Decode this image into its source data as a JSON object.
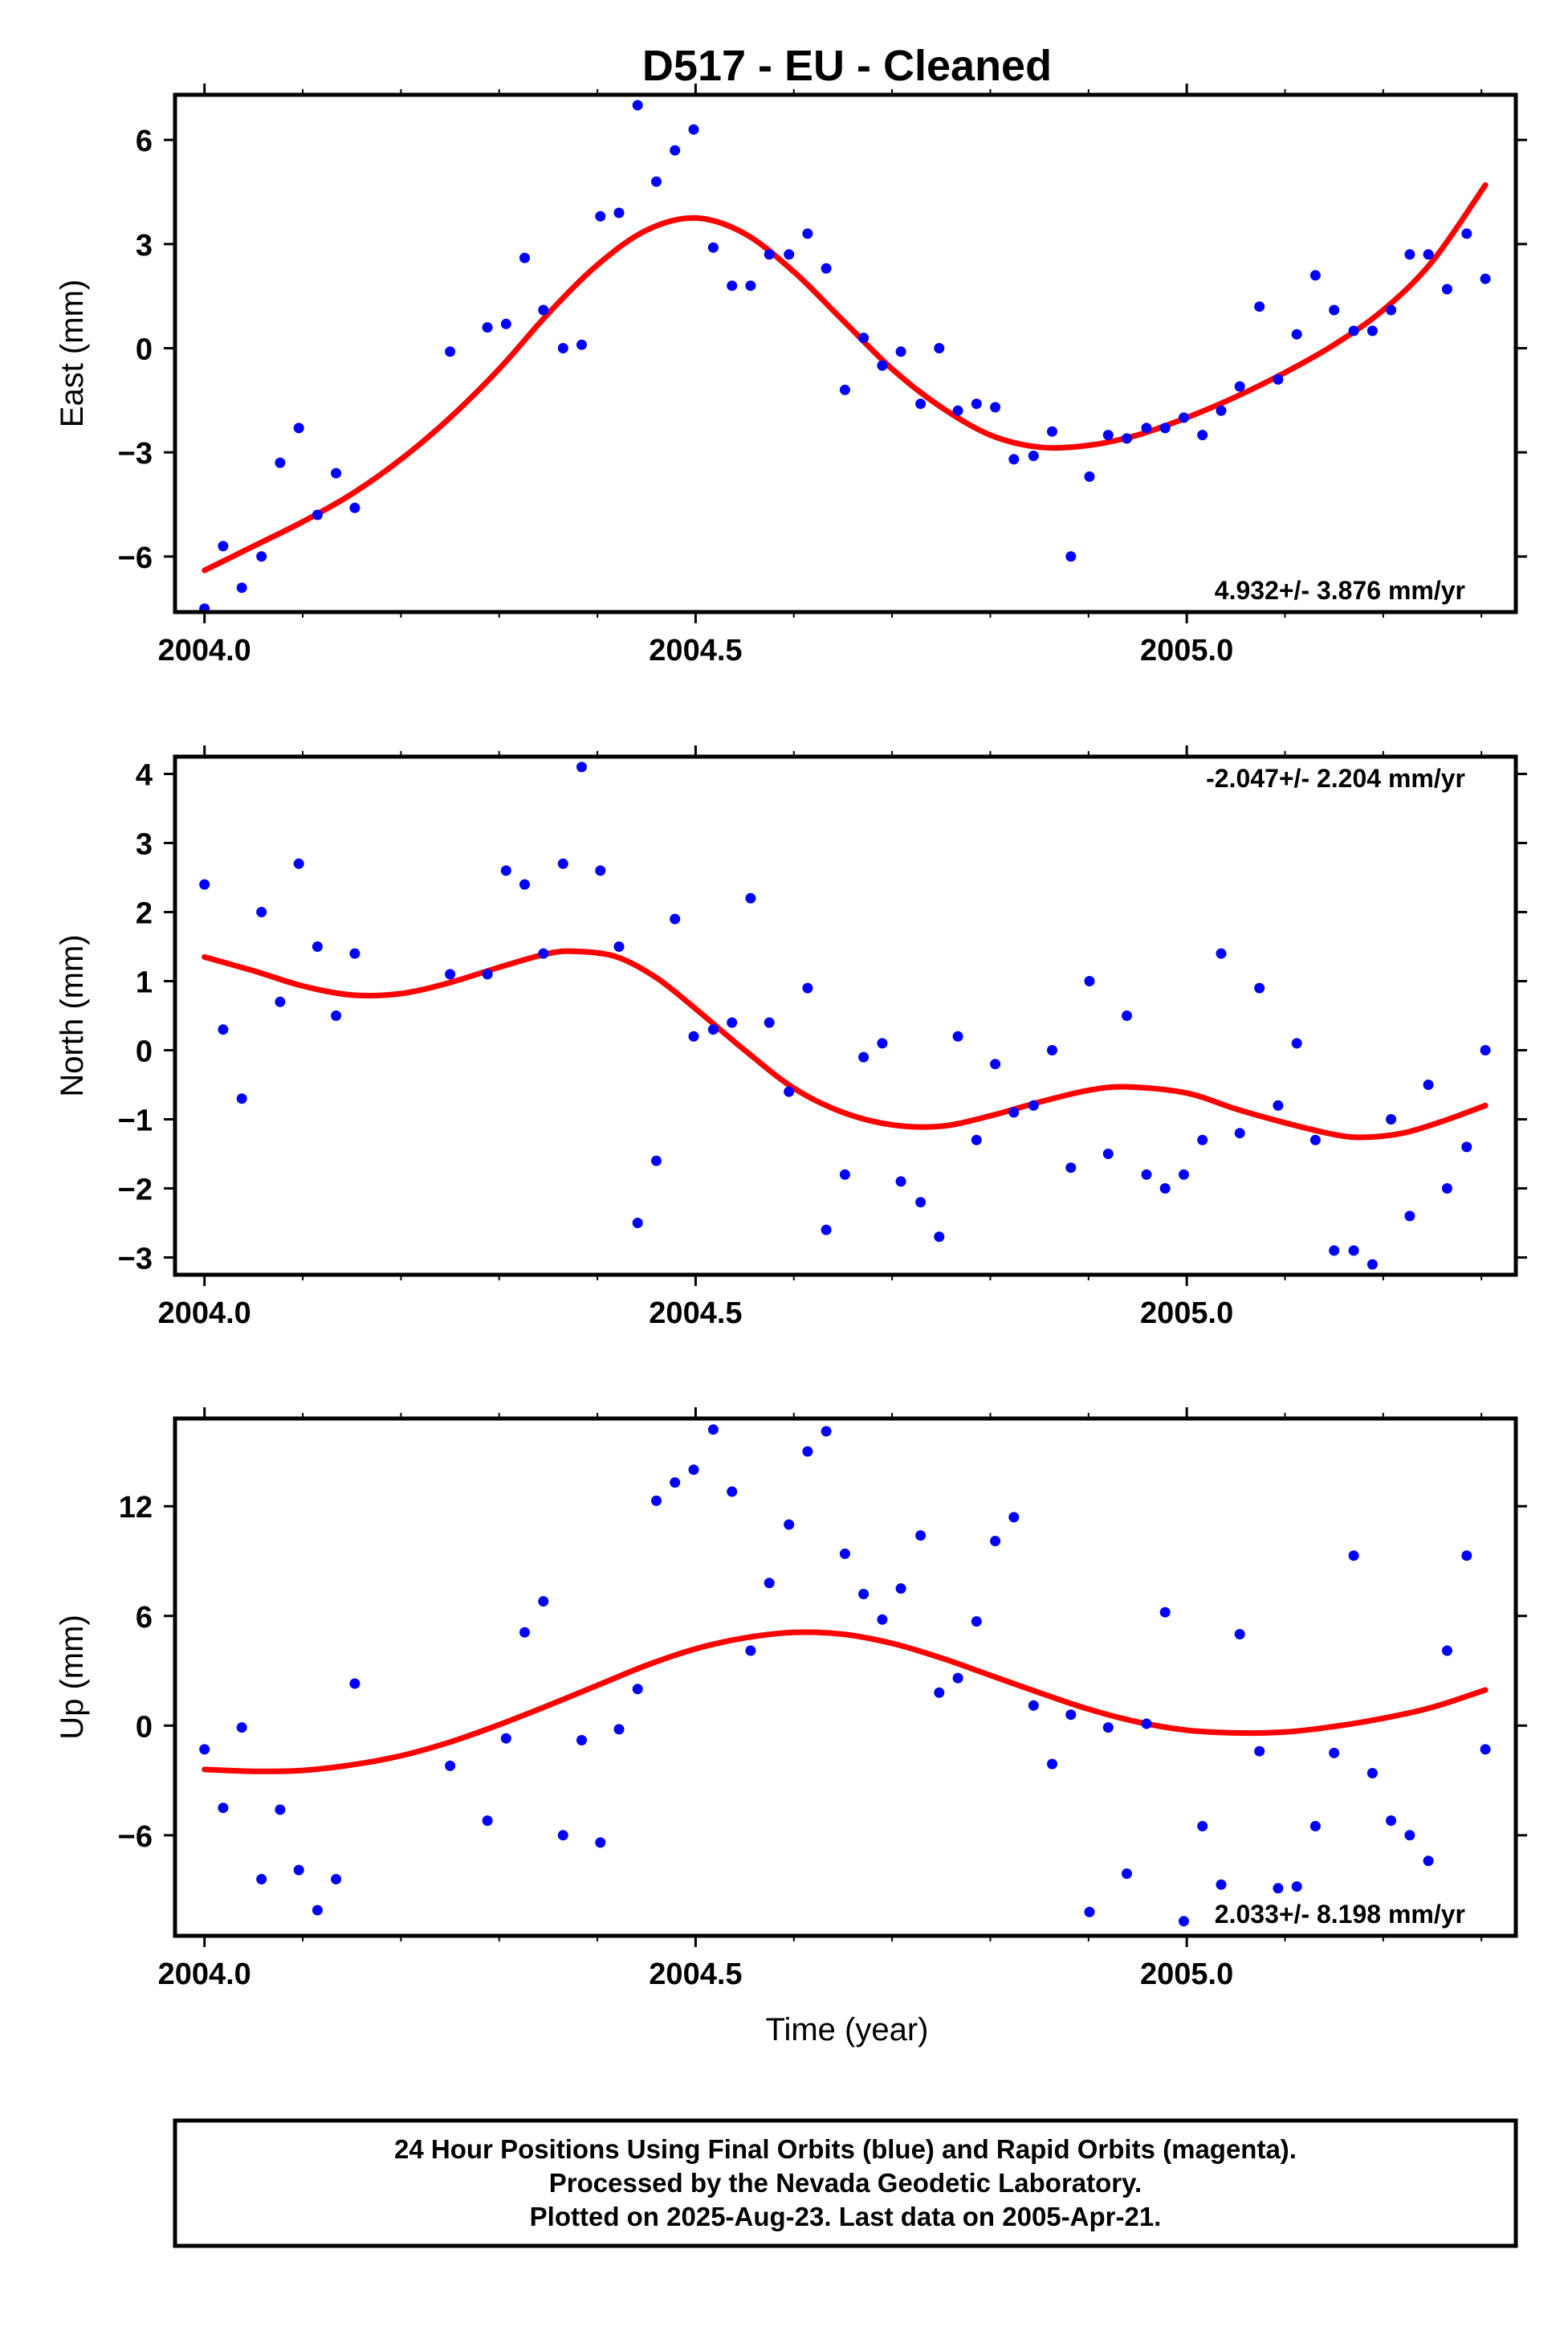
{
  "title": "D517  - EU - Cleaned",
  "xlabel": "Time (year)",
  "colors": {
    "points": "#0000ff",
    "fit": "#ff0000",
    "axes": "#000000"
  },
  "footer": {
    "line1": "24 Hour Positions Using Final Orbits (blue) and Rapid Orbits (magenta).",
    "line2": "Processed by the Nevada Geodetic Laboratory.",
    "line3": "Plotted on 2025-Aug-23. Last data on 2005-Apr-21."
  },
  "chart_data": [
    {
      "type": "scatter",
      "ylabel": "East (mm)",
      "rate_label": "4.932+/- 3.876 mm/yr",
      "xlim": [
        2003.97,
        2005.335
      ],
      "ylim": [
        -7.6,
        7.3
      ],
      "xticks": [
        2004.0,
        2004.5,
        2005.0
      ],
      "xtick_labels": [
        "2004.0",
        "2004.5",
        "2005.0"
      ],
      "yticks": [
        -6,
        -3,
        0,
        3,
        6
      ],
      "ytick_labels": [
        "−6",
        "−3",
        "0",
        "3",
        "6"
      ],
      "points": [
        [
          2004.0,
          -7.5
        ],
        [
          2004.019,
          -5.7
        ],
        [
          2004.038,
          -6.9
        ],
        [
          2004.058,
          -6.0
        ],
        [
          2004.077,
          -3.3
        ],
        [
          2004.096,
          -2.3
        ],
        [
          2004.115,
          -4.8
        ],
        [
          2004.134,
          -3.6
        ],
        [
          2004.153,
          -4.6
        ],
        [
          2004.25,
          -0.1
        ],
        [
          2004.288,
          0.6
        ],
        [
          2004.307,
          0.7
        ],
        [
          2004.326,
          2.6
        ],
        [
          2004.345,
          1.1
        ],
        [
          2004.365,
          0.0
        ],
        [
          2004.384,
          0.1
        ],
        [
          2004.403,
          3.8
        ],
        [
          2004.422,
          3.9
        ],
        [
          2004.441,
          7.0
        ],
        [
          2004.46,
          4.8
        ],
        [
          2004.479,
          5.7
        ],
        [
          2004.498,
          6.3
        ],
        [
          2004.518,
          2.9
        ],
        [
          2004.537,
          1.8
        ],
        [
          2004.556,
          1.8
        ],
        [
          2004.575,
          2.7
        ],
        [
          2004.595,
          2.7
        ],
        [
          2004.614,
          3.3
        ],
        [
          2004.633,
          2.3
        ],
        [
          2004.652,
          -1.2
        ],
        [
          2004.671,
          0.3
        ],
        [
          2004.69,
          -0.5
        ],
        [
          2004.709,
          -0.1
        ],
        [
          2004.729,
          -1.6
        ],
        [
          2004.748,
          0.0
        ],
        [
          2004.767,
          -1.8
        ],
        [
          2004.786,
          -1.6
        ],
        [
          2004.805,
          -1.7
        ],
        [
          2004.824,
          -3.2
        ],
        [
          2004.844,
          -3.1
        ],
        [
          2004.863,
          -2.4
        ],
        [
          2004.882,
          -6.0
        ],
        [
          2004.901,
          -3.7
        ],
        [
          2004.92,
          -2.5
        ],
        [
          2004.939,
          -2.6
        ],
        [
          2004.959,
          -2.3
        ],
        [
          2004.978,
          -2.3
        ],
        [
          2004.997,
          -2.0
        ],
        [
          2005.016,
          -2.5
        ],
        [
          2005.035,
          -1.8
        ],
        [
          2005.054,
          -1.1
        ],
        [
          2005.074,
          1.2
        ],
        [
          2005.093,
          -0.9
        ],
        [
          2005.112,
          0.4
        ],
        [
          2005.131,
          2.1
        ],
        [
          2005.15,
          1.1
        ],
        [
          2005.17,
          0.5
        ],
        [
          2005.189,
          0.5
        ],
        [
          2005.208,
          1.1
        ],
        [
          2005.227,
          2.7
        ],
        [
          2005.246,
          2.7
        ],
        [
          2005.265,
          1.7
        ],
        [
          2005.285,
          3.3
        ],
        [
          2005.304,
          2.0
        ]
      ],
      "fit": [
        [
          2004.0,
          -6.4
        ],
        [
          2004.05,
          -5.7
        ],
        [
          2004.1,
          -5.0
        ],
        [
          2004.15,
          -4.2
        ],
        [
          2004.2,
          -3.2
        ],
        [
          2004.25,
          -2.0
        ],
        [
          2004.3,
          -0.6
        ],
        [
          2004.35,
          1.0
        ],
        [
          2004.4,
          2.4
        ],
        [
          2004.45,
          3.4
        ],
        [
          2004.5,
          3.75
        ],
        [
          2004.55,
          3.3
        ],
        [
          2004.6,
          2.2
        ],
        [
          2004.65,
          0.8
        ],
        [
          2004.7,
          -0.6
        ],
        [
          2004.75,
          -1.7
        ],
        [
          2004.8,
          -2.5
        ],
        [
          2004.85,
          -2.85
        ],
        [
          2004.9,
          -2.8
        ],
        [
          2004.95,
          -2.5
        ],
        [
          2005.0,
          -2.0
        ],
        [
          2005.05,
          -1.4
        ],
        [
          2005.1,
          -0.7
        ],
        [
          2005.15,
          0.1
        ],
        [
          2005.2,
          1.1
        ],
        [
          2005.25,
          2.5
        ],
        [
          2005.304,
          4.7
        ]
      ]
    },
    {
      "type": "scatter",
      "ylabel": "North (mm)",
      "rate_label": "-2.047+/- 2.204 mm/yr",
      "xlim": [
        2003.97,
        2005.335
      ],
      "ylim": [
        -3.25,
        4.25
      ],
      "xticks": [
        2004.0,
        2004.5,
        2005.0
      ],
      "xtick_labels": [
        "2004.0",
        "2004.5",
        "2005.0"
      ],
      "yticks": [
        -3,
        -2,
        -1,
        0,
        1,
        2,
        3,
        4
      ],
      "ytick_labels": [
        "−3",
        "−2",
        "−1",
        "0",
        "1",
        "2",
        "3",
        "4"
      ],
      "points": [
        [
          2004.0,
          2.4
        ],
        [
          2004.019,
          0.3
        ],
        [
          2004.038,
          -0.7
        ],
        [
          2004.058,
          2.0
        ],
        [
          2004.077,
          0.7
        ],
        [
          2004.096,
          2.7
        ],
        [
          2004.115,
          1.5
        ],
        [
          2004.134,
          0.5
        ],
        [
          2004.153,
          1.4
        ],
        [
          2004.25,
          1.1
        ],
        [
          2004.288,
          1.1
        ],
        [
          2004.307,
          2.6
        ],
        [
          2004.326,
          2.4
        ],
        [
          2004.345,
          1.4
        ],
        [
          2004.365,
          2.7
        ],
        [
          2004.384,
          4.1
        ],
        [
          2004.403,
          2.6
        ],
        [
          2004.422,
          1.5
        ],
        [
          2004.441,
          -2.5
        ],
        [
          2004.46,
          -1.6
        ],
        [
          2004.479,
          1.9
        ],
        [
          2004.498,
          0.2
        ],
        [
          2004.518,
          0.3
        ],
        [
          2004.537,
          0.4
        ],
        [
          2004.556,
          2.2
        ],
        [
          2004.575,
          0.4
        ],
        [
          2004.595,
          -0.6
        ],
        [
          2004.614,
          0.9
        ],
        [
          2004.633,
          -2.6
        ],
        [
          2004.652,
          -1.8
        ],
        [
          2004.671,
          -0.1
        ],
        [
          2004.69,
          0.1
        ],
        [
          2004.709,
          -1.9
        ],
        [
          2004.729,
          -2.2
        ],
        [
          2004.748,
          -2.7
        ],
        [
          2004.767,
          0.2
        ],
        [
          2004.786,
          -1.3
        ],
        [
          2004.805,
          -0.2
        ],
        [
          2004.824,
          -0.9
        ],
        [
          2004.844,
          -0.8
        ],
        [
          2004.863,
          0.0
        ],
        [
          2004.882,
          -1.7
        ],
        [
          2004.901,
          1.0
        ],
        [
          2004.92,
          -1.5
        ],
        [
          2004.939,
          0.5
        ],
        [
          2004.959,
          -1.8
        ],
        [
          2004.978,
          -2.0
        ],
        [
          2004.997,
          -1.8
        ],
        [
          2005.016,
          -1.3
        ],
        [
          2005.035,
          1.4
        ],
        [
          2005.054,
          -1.2
        ],
        [
          2005.074,
          0.9
        ],
        [
          2005.093,
          -0.8
        ],
        [
          2005.112,
          0.1
        ],
        [
          2005.131,
          -1.3
        ],
        [
          2005.15,
          -2.9
        ],
        [
          2005.17,
          -2.9
        ],
        [
          2005.189,
          -3.1
        ],
        [
          2005.208,
          -1.0
        ],
        [
          2005.227,
          -2.4
        ],
        [
          2005.246,
          -0.5
        ],
        [
          2005.265,
          -2.0
        ],
        [
          2005.285,
          -1.4
        ],
        [
          2005.304,
          0.0
        ]
      ],
      "fit": [
        [
          2004.0,
          1.35
        ],
        [
          2004.05,
          1.15
        ],
        [
          2004.1,
          0.93
        ],
        [
          2004.15,
          0.8
        ],
        [
          2004.2,
          0.82
        ],
        [
          2004.25,
          0.98
        ],
        [
          2004.3,
          1.2
        ],
        [
          2004.35,
          1.4
        ],
        [
          2004.38,
          1.43
        ],
        [
          2004.42,
          1.35
        ],
        [
          2004.46,
          1.05
        ],
        [
          2004.5,
          0.6
        ],
        [
          2004.55,
          0.0
        ],
        [
          2004.6,
          -0.55
        ],
        [
          2004.65,
          -0.9
        ],
        [
          2004.7,
          -1.08
        ],
        [
          2004.75,
          -1.1
        ],
        [
          2004.8,
          -0.95
        ],
        [
          2004.85,
          -0.75
        ],
        [
          2004.9,
          -0.58
        ],
        [
          2004.94,
          -0.53
        ],
        [
          2005.0,
          -0.62
        ],
        [
          2005.05,
          -0.85
        ],
        [
          2005.1,
          -1.05
        ],
        [
          2005.15,
          -1.22
        ],
        [
          2005.18,
          -1.26
        ],
        [
          2005.22,
          -1.2
        ],
        [
          2005.26,
          -1.03
        ],
        [
          2005.304,
          -0.8
        ]
      ]
    },
    {
      "type": "scatter",
      "ylabel": "Up (mm)",
      "rate_label": "2.033+/- 8.198 mm/yr",
      "xlim": [
        2003.97,
        2005.335
      ],
      "ylim": [
        -11.5,
        16.8
      ],
      "xticks": [
        2004.0,
        2004.5,
        2005.0
      ],
      "xtick_labels": [
        "2004.0",
        "2004.5",
        "2005.0"
      ],
      "yticks": [
        -6,
        0,
        6,
        12
      ],
      "ytick_labels": [
        "−6",
        "0",
        "6",
        "12"
      ],
      "points": [
        [
          2004.0,
          -1.3
        ],
        [
          2004.019,
          -4.5
        ],
        [
          2004.038,
          -0.1
        ],
        [
          2004.058,
          -8.4
        ],
        [
          2004.077,
          -4.6
        ],
        [
          2004.096,
          -7.9
        ],
        [
          2004.115,
          -10.1
        ],
        [
          2004.134,
          -8.4
        ],
        [
          2004.153,
          2.3
        ],
        [
          2004.25,
          -2.2
        ],
        [
          2004.288,
          -5.2
        ],
        [
          2004.307,
          -0.7
        ],
        [
          2004.326,
          5.1
        ],
        [
          2004.345,
          6.8
        ],
        [
          2004.365,
          -6.0
        ],
        [
          2004.384,
          -0.8
        ],
        [
          2004.403,
          -6.4
        ],
        [
          2004.422,
          -0.2
        ],
        [
          2004.441,
          2.0
        ],
        [
          2004.46,
          12.3
        ],
        [
          2004.479,
          13.3
        ],
        [
          2004.498,
          14.0
        ],
        [
          2004.518,
          16.2
        ],
        [
          2004.537,
          12.8
        ],
        [
          2004.556,
          4.1
        ],
        [
          2004.575,
          7.8
        ],
        [
          2004.595,
          11.0
        ],
        [
          2004.614,
          15.0
        ],
        [
          2004.633,
          16.1
        ],
        [
          2004.652,
          9.4
        ],
        [
          2004.671,
          7.2
        ],
        [
          2004.69,
          5.8
        ],
        [
          2004.709,
          7.5
        ],
        [
          2004.729,
          10.4
        ],
        [
          2004.748,
          1.8
        ],
        [
          2004.767,
          2.6
        ],
        [
          2004.786,
          5.7
        ],
        [
          2004.805,
          10.1
        ],
        [
          2004.824,
          11.4
        ],
        [
          2004.844,
          1.1
        ],
        [
          2004.863,
          -2.1
        ],
        [
          2004.882,
          0.6
        ],
        [
          2004.901,
          -10.2
        ],
        [
          2004.92,
          -0.1
        ],
        [
          2004.939,
          -8.1
        ],
        [
          2004.959,
          0.1
        ],
        [
          2004.978,
          6.2
        ],
        [
          2004.997,
          -10.7
        ],
        [
          2005.016,
          -5.5
        ],
        [
          2005.035,
          -8.7
        ],
        [
          2005.054,
          5.0
        ],
        [
          2005.074,
          -1.4
        ],
        [
          2005.093,
          -8.9
        ],
        [
          2005.112,
          -8.8
        ],
        [
          2005.131,
          -5.5
        ],
        [
          2005.15,
          -1.5
        ],
        [
          2005.17,
          9.3
        ],
        [
          2005.189,
          -2.6
        ],
        [
          2005.208,
          -5.2
        ],
        [
          2005.227,
          -6.0
        ],
        [
          2005.246,
          -7.4
        ],
        [
          2005.265,
          4.1
        ],
        [
          2005.285,
          9.3
        ],
        [
          2005.304,
          -1.3
        ]
      ],
      "fit": [
        [
          2004.0,
          -2.4
        ],
        [
          2004.05,
          -2.5
        ],
        [
          2004.1,
          -2.45
        ],
        [
          2004.15,
          -2.15
        ],
        [
          2004.2,
          -1.65
        ],
        [
          2004.25,
          -0.9
        ],
        [
          2004.3,
          0.05
        ],
        [
          2004.35,
          1.1
        ],
        [
          2004.4,
          2.2
        ],
        [
          2004.45,
          3.3
        ],
        [
          2004.5,
          4.2
        ],
        [
          2004.55,
          4.8
        ],
        [
          2004.6,
          5.1
        ],
        [
          2004.65,
          5.0
        ],
        [
          2004.7,
          4.5
        ],
        [
          2004.75,
          3.7
        ],
        [
          2004.8,
          2.75
        ],
        [
          2004.85,
          1.8
        ],
        [
          2004.9,
          0.9
        ],
        [
          2004.95,
          0.2
        ],
        [
          2005.0,
          -0.25
        ],
        [
          2005.05,
          -0.4
        ],
        [
          2005.1,
          -0.35
        ],
        [
          2005.15,
          -0.05
        ],
        [
          2005.2,
          0.4
        ],
        [
          2005.25,
          1.0
        ],
        [
          2005.304,
          1.95
        ]
      ]
    }
  ]
}
